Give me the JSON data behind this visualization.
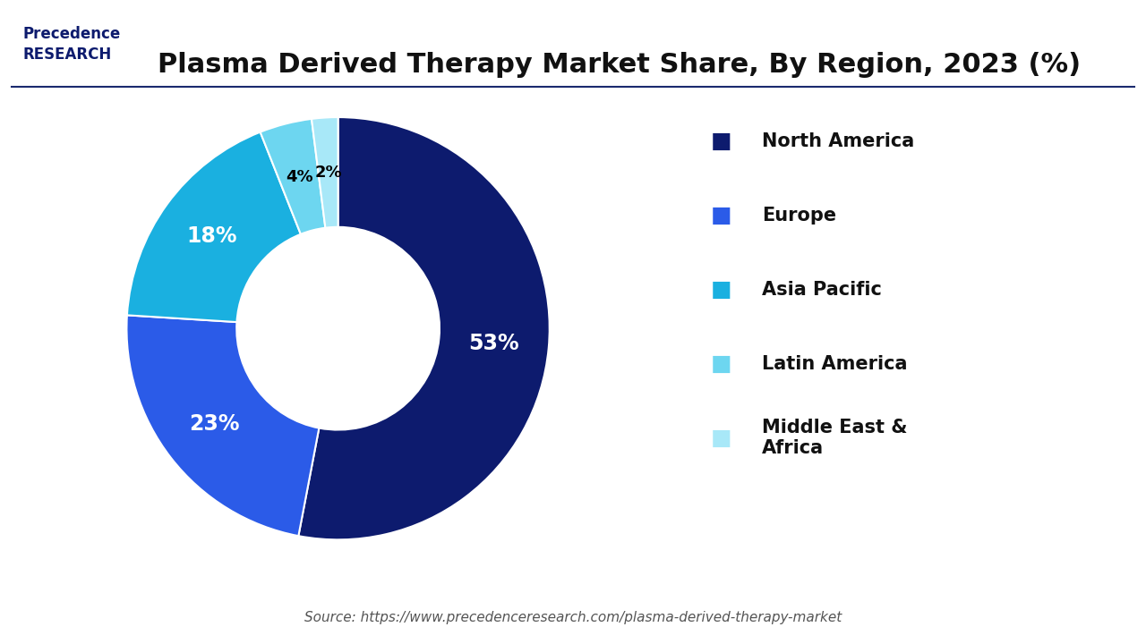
{
  "title": "Plasma Derived Therapy Market Share, By Region, 2023 (%)",
  "labels": [
    "North America",
    "Europe",
    "Asia Pacific",
    "Latin America",
    "Middle East &\nAfrica"
  ],
  "values": [
    53,
    23,
    18,
    4,
    2
  ],
  "colors": [
    "#0d1b6e",
    "#2b5be8",
    "#1ab0e0",
    "#6dd6f0",
    "#a8e8f8"
  ],
  "pct_labels": [
    "53%",
    "23%",
    "18%",
    "4%",
    "2%"
  ],
  "pct_colors": [
    "white",
    "white",
    "white",
    "black",
    "black"
  ],
  "source": "Source: https://www.precedenceresearch.com/plasma-derived-therapy-market",
  "background_color": "#ffffff",
  "title_fontsize": 22,
  "legend_fontsize": 15,
  "source_fontsize": 11
}
